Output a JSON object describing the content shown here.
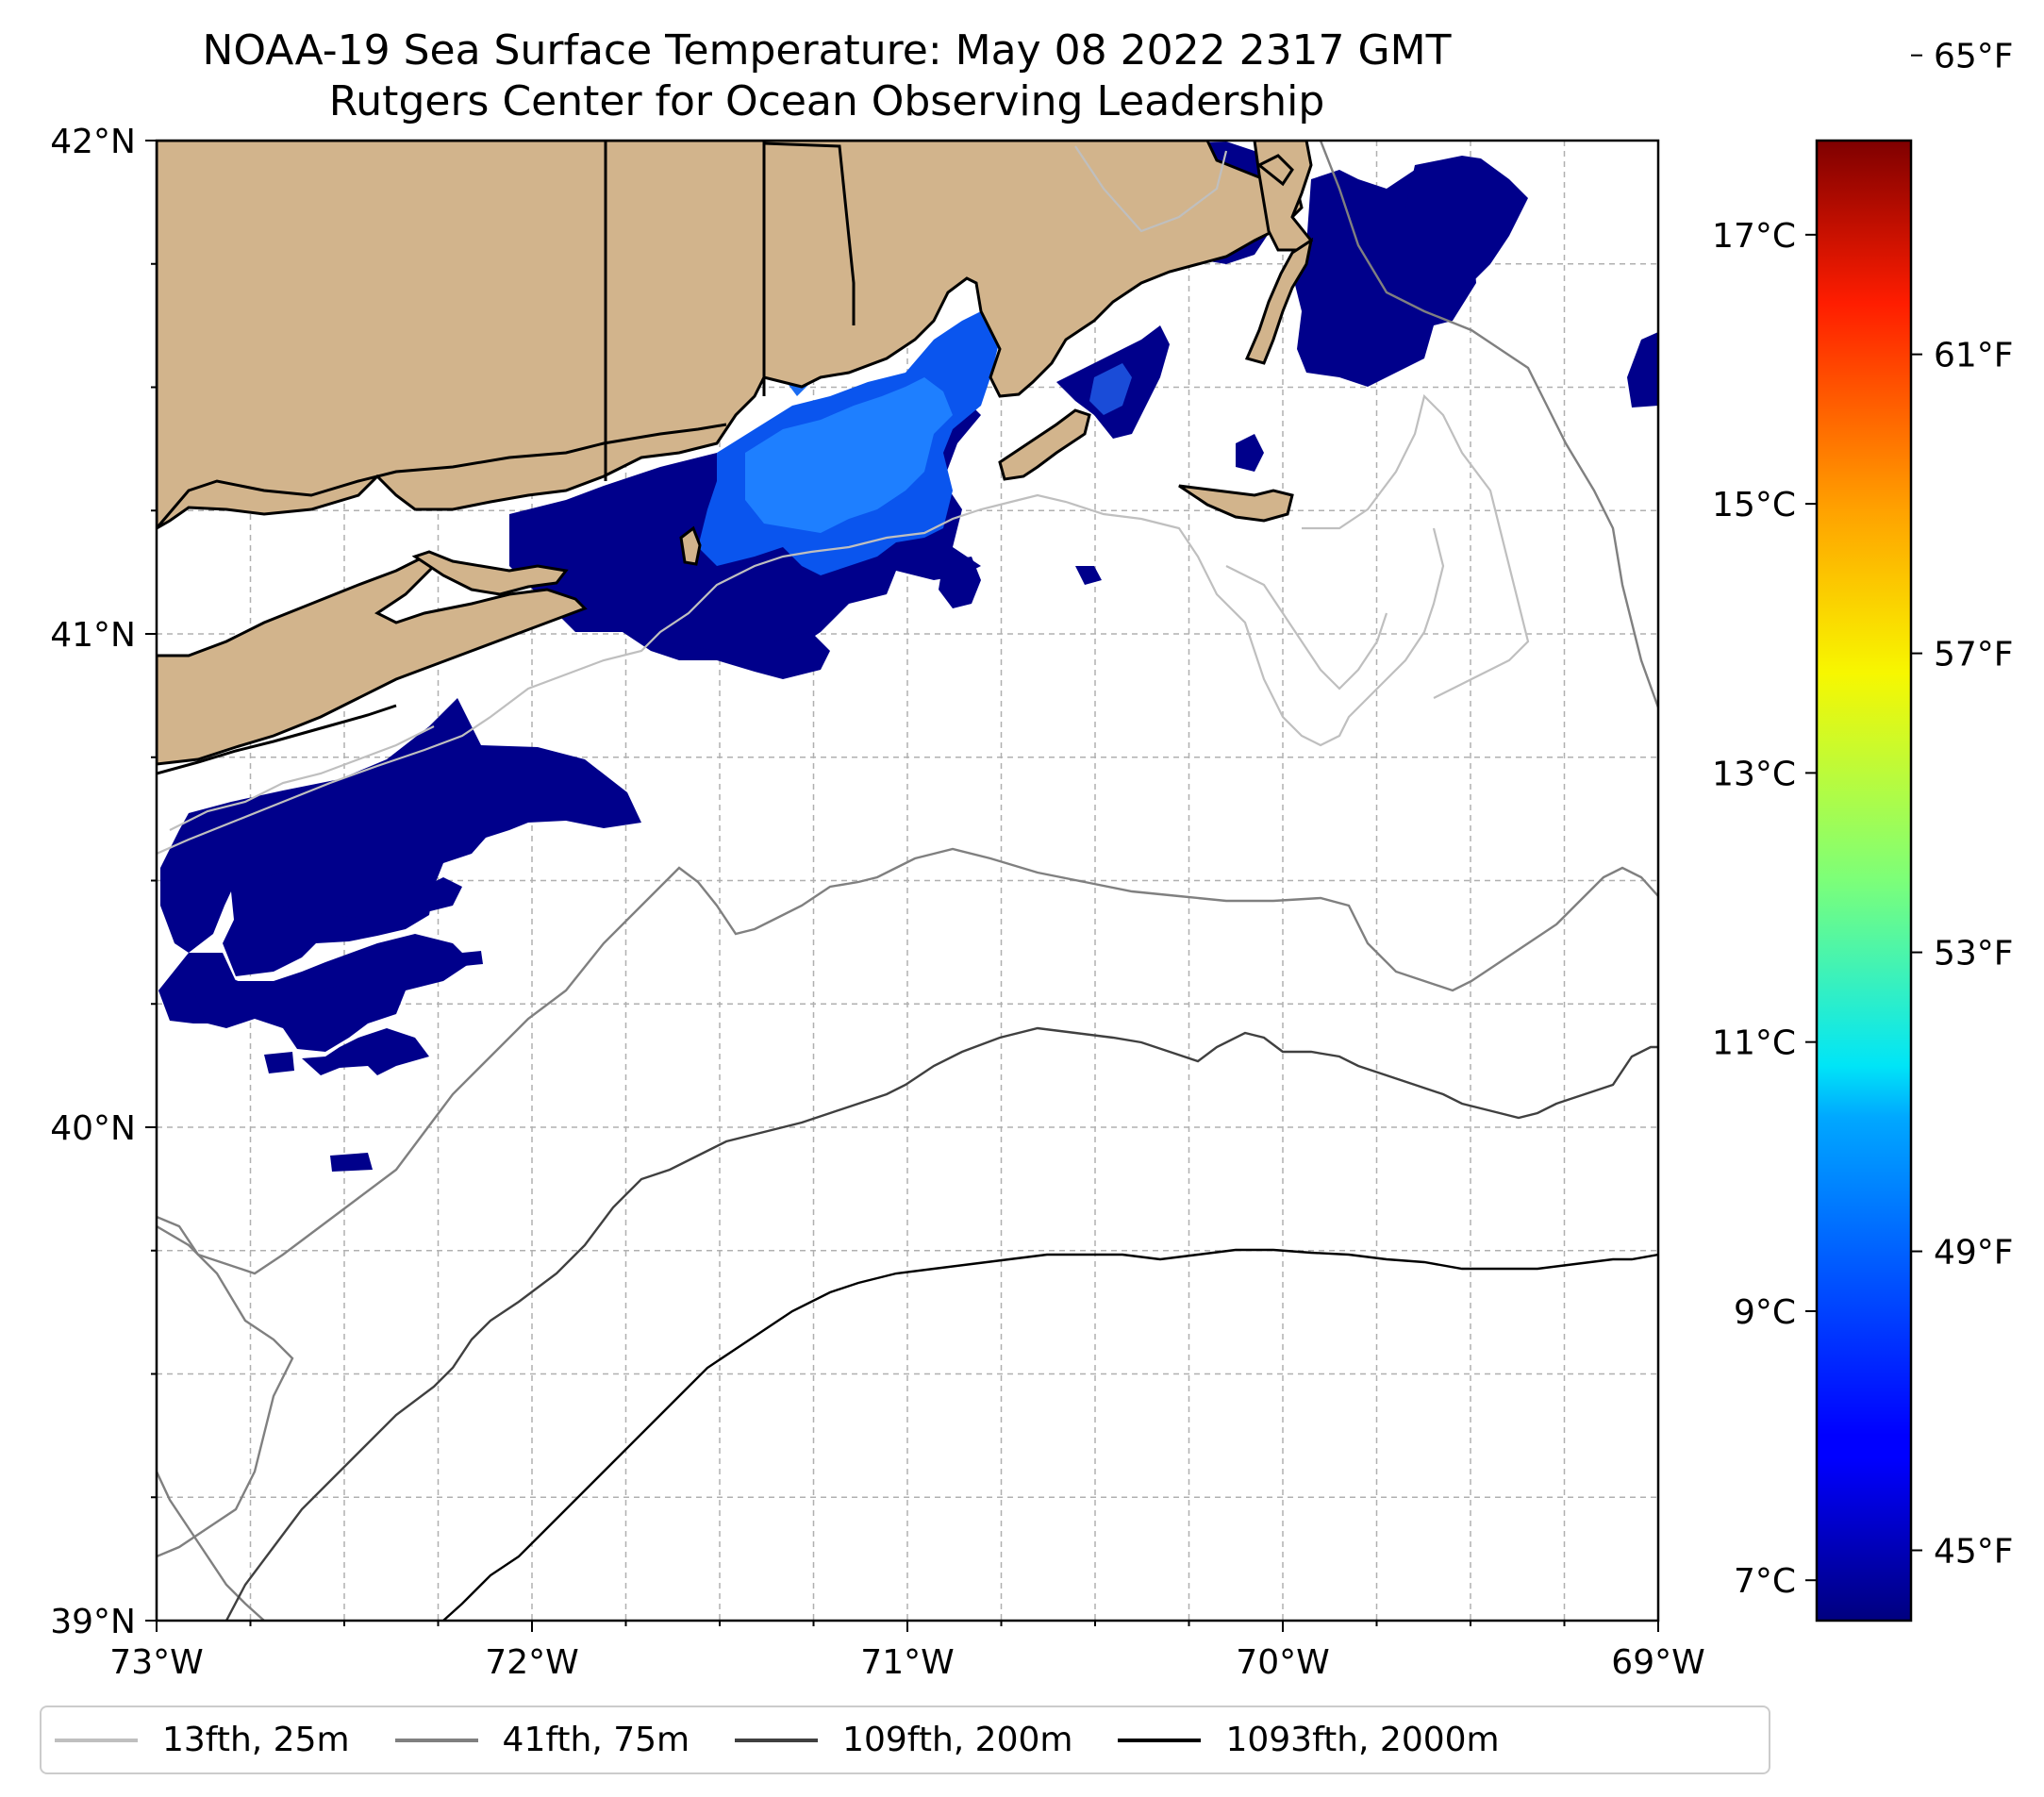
{
  "title": "NOAA-19 Sea Surface Temperature: May 08 2022 2317 GMT",
  "subtitle": "Rutgers Center for Ocean Observing Leadership",
  "map": {
    "extent": {
      "lon_min": -73,
      "lon_max": -69,
      "lat_min": 39,
      "lat_max": 42
    },
    "lon_ticks": [
      {
        "value": -73,
        "label": "73°W"
      },
      {
        "value": -72,
        "label": "72°W"
      },
      {
        "value": -71,
        "label": "71°W"
      },
      {
        "value": -70,
        "label": "70°W"
      },
      {
        "value": -69,
        "label": "69°W"
      }
    ],
    "lat_ticks": [
      {
        "value": 39,
        "label": "39°N"
      },
      {
        "value": 40,
        "label": "40°N"
      },
      {
        "value": 41,
        "label": "41°N"
      },
      {
        "value": 42,
        "label": "42°N"
      }
    ],
    "gridlines": true,
    "land_color": "#d2b48c",
    "contour_colors": {
      "25m": "#bfbfbf",
      "75m": "#808080",
      "200m": "#404040",
      "2000m": "#000000"
    }
  },
  "colorbar": {
    "colormap": "jet",
    "range_c": [
      6.7,
      17.7
    ],
    "celsius_ticks": [
      {
        "value": 7,
        "label": "7°C"
      },
      {
        "value": 9,
        "label": "9°C"
      },
      {
        "value": 11,
        "label": "11°C"
      },
      {
        "value": 13,
        "label": "13°C"
      },
      {
        "value": 15,
        "label": "15°C"
      },
      {
        "value": 17,
        "label": "17°C"
      }
    ],
    "fahrenheit_ticks": [
      {
        "value": 45,
        "label": "45°F"
      },
      {
        "value": 49,
        "label": "49°F"
      },
      {
        "value": 53,
        "label": "53°F"
      },
      {
        "value": 57,
        "label": "57°F"
      },
      {
        "value": 61,
        "label": "61°F"
      },
      {
        "value": 65,
        "label": "65°F"
      }
    ]
  },
  "legend": {
    "placement": "bottom",
    "items": [
      {
        "label": "13fth, 25m",
        "color": "#bfbfbf"
      },
      {
        "label": "41fth, 75m",
        "color": "#808080"
      },
      {
        "label": "109fth, 200m",
        "color": "#404040"
      },
      {
        "label": "1093fth, 2000m",
        "color": "#000000"
      }
    ]
  }
}
